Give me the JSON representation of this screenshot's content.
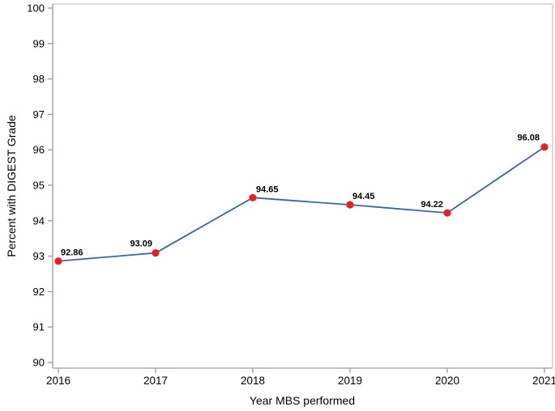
{
  "chart_data": {
    "type": "line",
    "title": "",
    "xlabel": "Year MBS performed",
    "ylabel": "Percent with DIGEST Grade",
    "categories": [
      "2016",
      "2017",
      "2018",
      "2019",
      "2020",
      "2021"
    ],
    "series": [
      {
        "name": "Percent with DIGEST Grade",
        "values": [
          92.86,
          93.09,
          94.65,
          94.45,
          94.22,
          96.08
        ],
        "point_labels": [
          "92.86",
          "93.09",
          "94.65",
          "94.45",
          "94.22",
          "96.08"
        ]
      }
    ],
    "ylim": [
      90,
      100
    ],
    "ytick_step": 1,
    "ytick_labels": [
      "90",
      "91",
      "92",
      "93",
      "94",
      "95",
      "96",
      "97",
      "98",
      "99",
      "100"
    ],
    "grid": false,
    "legend": "none",
    "colors": {
      "line": "#3a62b1",
      "marker": "#e9201d",
      "axis": "#9a9a9a",
      "frame": "#c6c6c6",
      "text": "#000000",
      "background": "#ffffff"
    }
  }
}
